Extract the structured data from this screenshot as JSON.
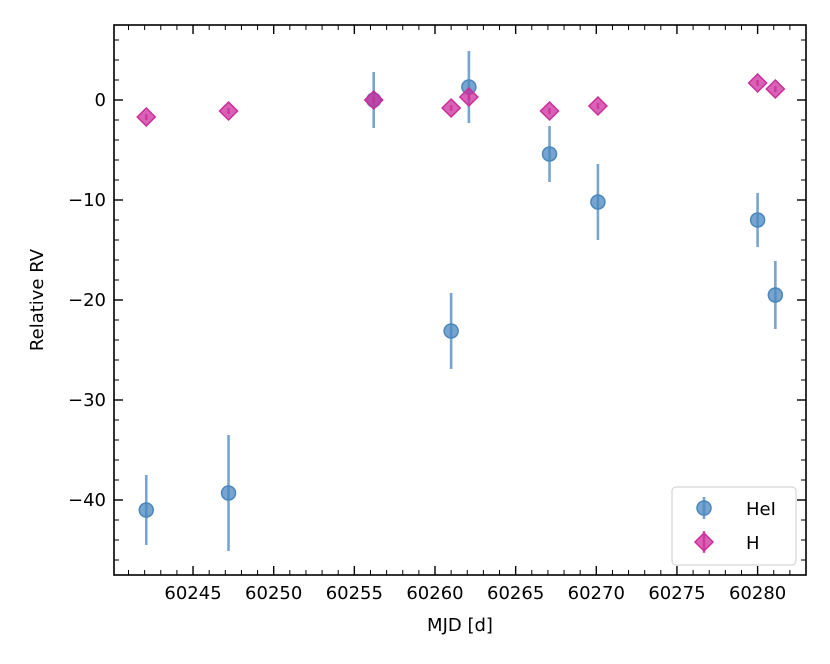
{
  "chart_data": {
    "type": "scatter",
    "title": "",
    "xlabel": "MJD [d]",
    "ylabel": "Relative RV",
    "xlim": [
      60240.1,
      60283.0
    ],
    "ylim": [
      -47.5,
      7.5
    ],
    "xticks": [
      60245,
      60250,
      60255,
      60260,
      60265,
      60270,
      60275,
      60280
    ],
    "xtick_labels": [
      "60245",
      "60250",
      "60255",
      "60260",
      "60265",
      "60270",
      "60275",
      "60280"
    ],
    "yticks": [
      -40,
      -30,
      -20,
      -10,
      0
    ],
    "ytick_labels": [
      "−40",
      "−30",
      "−20",
      "−10",
      "0"
    ],
    "x_minor_step": 1,
    "y_minor_step": 2,
    "grid": false,
    "legend": "lower-right",
    "series": [
      {
        "name": "HeI",
        "marker": "circle",
        "color": "#4a87bf",
        "error_bars": true,
        "points": [
          {
            "x": 60242.1,
            "y": -41.0,
            "err": 3.5
          },
          {
            "x": 60247.2,
            "y": -39.3,
            "err": 5.8
          },
          {
            "x": 60256.2,
            "y": 0.0,
            "err": 2.8
          },
          {
            "x": 60261.0,
            "y": -23.1,
            "err": 3.8
          },
          {
            "x": 60262.1,
            "y": 1.3,
            "err": 3.6
          },
          {
            "x": 60267.1,
            "y": -5.4,
            "err": 2.8
          },
          {
            "x": 60270.1,
            "y": -10.2,
            "err": 3.8
          },
          {
            "x": 60280.0,
            "y": -12.0,
            "err": 2.7
          },
          {
            "x": 60281.1,
            "y": -19.5,
            "err": 3.4
          }
        ]
      },
      {
        "name": "H",
        "marker": "diamond",
        "color": "#cc2d9c",
        "error_bars": true,
        "points": [
          {
            "x": 60242.1,
            "y": -1.7,
            "err": 0.3
          },
          {
            "x": 60247.2,
            "y": -1.1,
            "err": 0.3
          },
          {
            "x": 60256.2,
            "y": 0.0,
            "err": 0.3
          },
          {
            "x": 60261.0,
            "y": -0.8,
            "err": 0.3
          },
          {
            "x": 60262.1,
            "y": 0.3,
            "err": 0.3
          },
          {
            "x": 60267.1,
            "y": -1.1,
            "err": 0.3
          },
          {
            "x": 60270.1,
            "y": -0.6,
            "err": 0.3
          },
          {
            "x": 60280.0,
            "y": 1.7,
            "err": 0.3
          },
          {
            "x": 60281.1,
            "y": 1.1,
            "err": 0.3
          }
        ]
      }
    ]
  }
}
